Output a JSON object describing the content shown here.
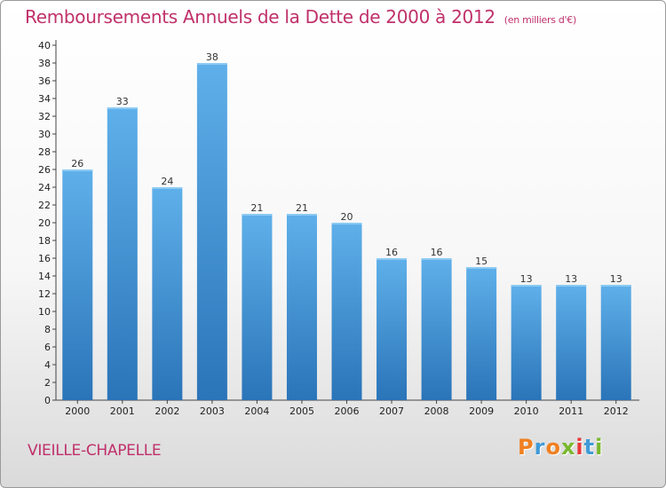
{
  "chart_data": {
    "type": "bar",
    "title": "Remboursements Annuels de la Dette de 2000 à 2012",
    "subtitle": "(en milliers d'€)",
    "categories": [
      "2000",
      "2001",
      "2002",
      "2003",
      "2004",
      "2005",
      "2006",
      "2007",
      "2008",
      "2009",
      "2010",
      "2011",
      "2012"
    ],
    "values": [
      26,
      33,
      24,
      38,
      21,
      21,
      20,
      16,
      16,
      15,
      13,
      13,
      13
    ],
    "xlabel": "",
    "ylabel": "",
    "ylim": [
      0,
      40
    ],
    "ytick_step": 2,
    "grid": false,
    "bar_color": "#4a9ee0",
    "bar_color_light": "#5fb0ea",
    "bar_color_dark": "#2a74b8"
  },
  "footer": {
    "commune": "VIEILLE-CHAPELLE",
    "logo_letters": [
      "P",
      "r",
      "o",
      "x",
      "i",
      "t",
      "i"
    ],
    "logo_colors": [
      "#f08020",
      "#3f9ad8",
      "#f08020",
      "#7ab82e",
      "#e8383a",
      "#3f9ad8",
      "#7ab82e"
    ]
  }
}
